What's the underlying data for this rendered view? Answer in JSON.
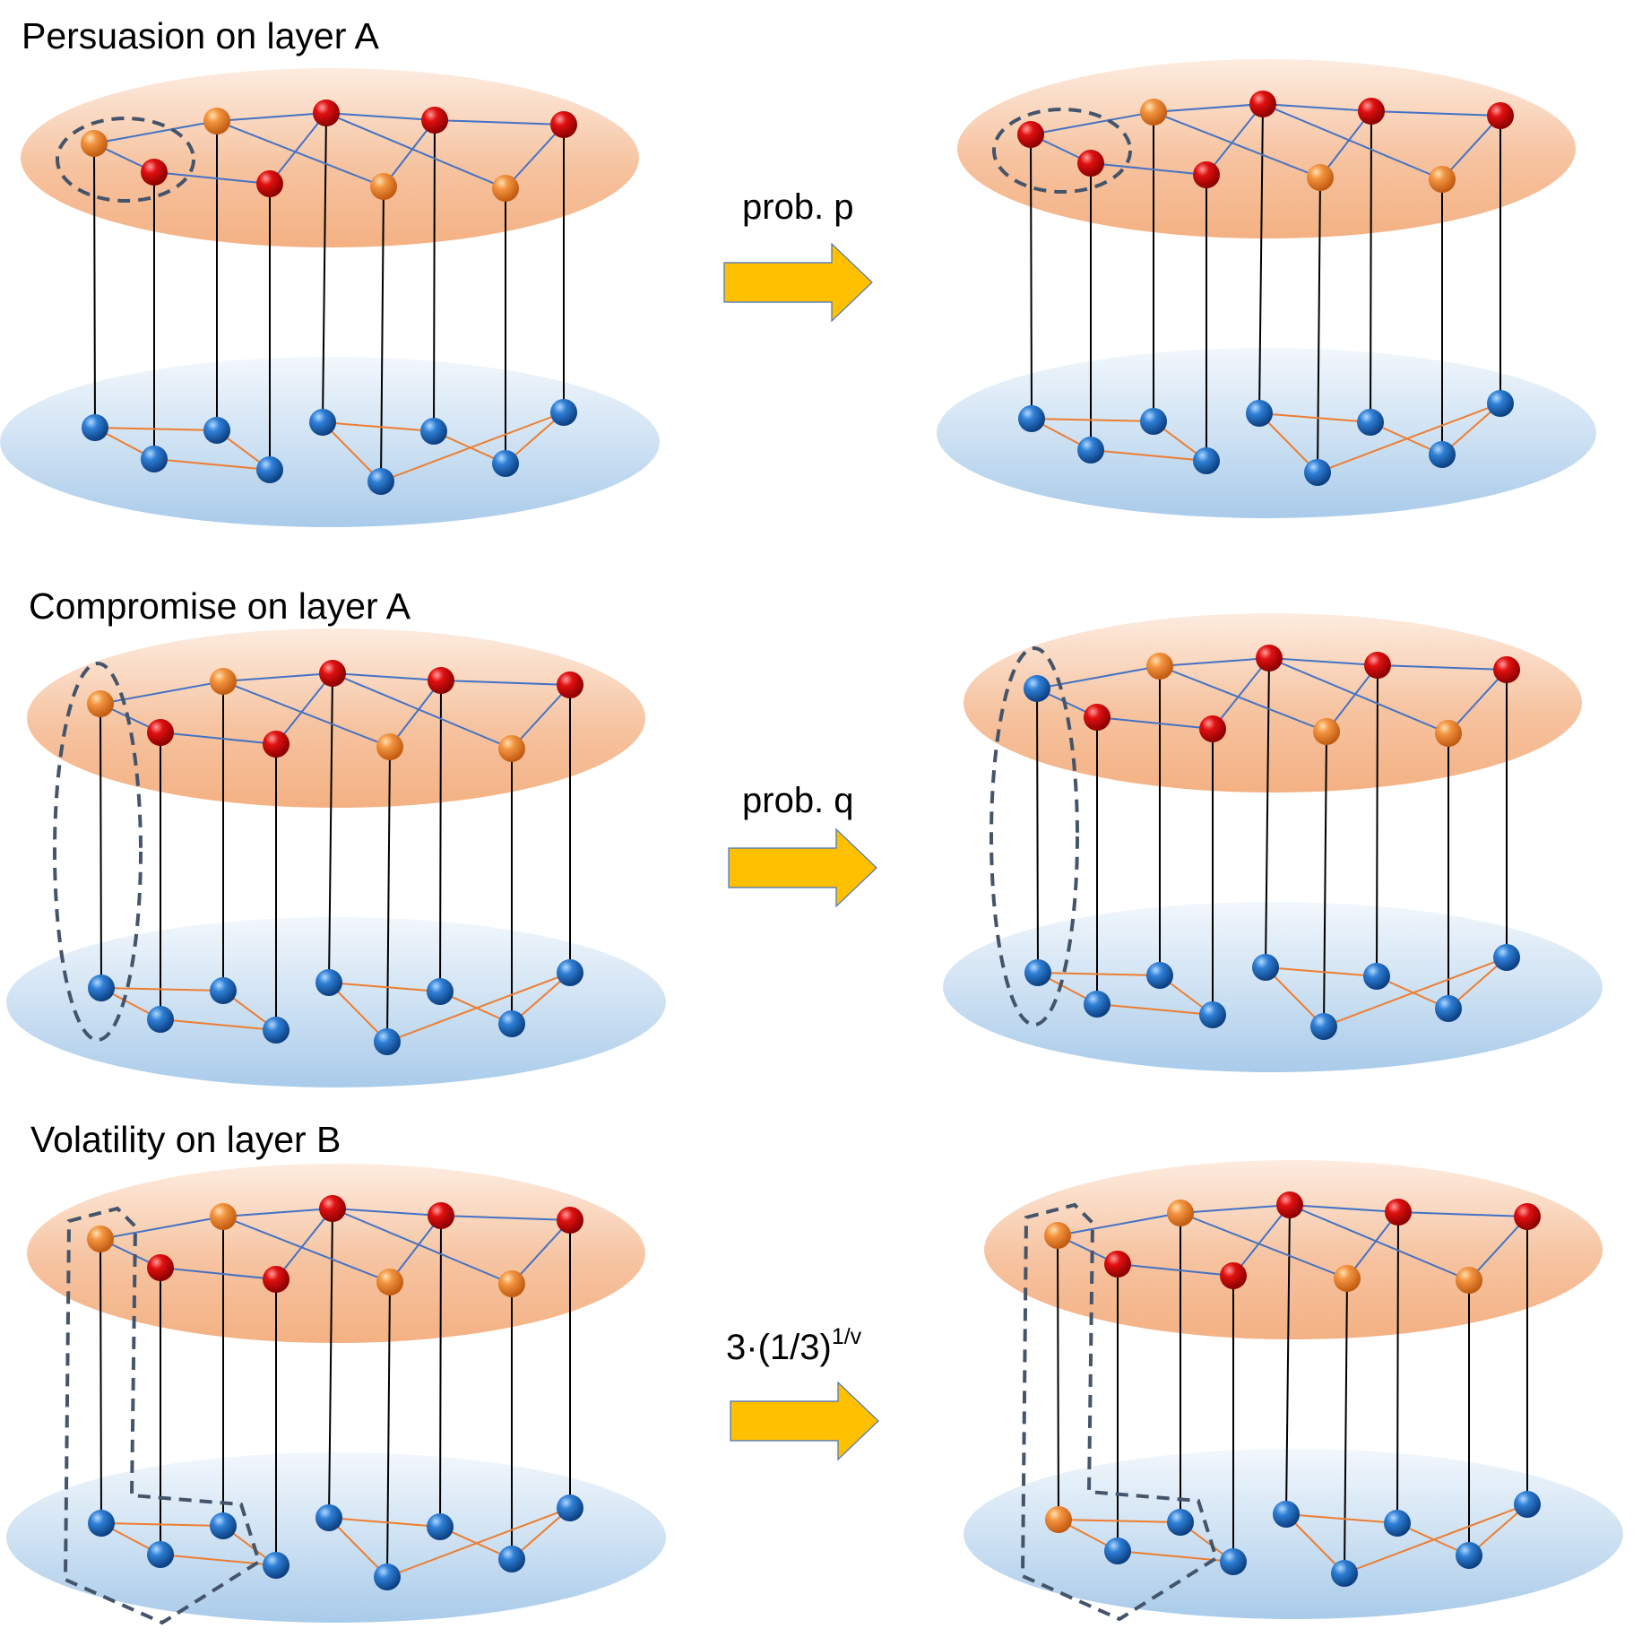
{
  "rows": [
    {
      "title": "Persuasion on layer A",
      "transition_label": "prob. p",
      "before": {
        "top_colors": [
          "orange",
          "red",
          "orange",
          "red",
          "red",
          "orange",
          "red",
          "orange",
          "red"
        ],
        "bottom_colors": [
          "blue",
          "blue",
          "blue",
          "blue",
          "blue",
          "blue",
          "blue",
          "blue",
          "blue"
        ],
        "highlight": "pair"
      },
      "after": {
        "top_colors": [
          "red",
          "red",
          "orange",
          "red",
          "red",
          "orange",
          "red",
          "orange",
          "red"
        ],
        "bottom_colors": [
          "blue",
          "blue",
          "blue",
          "blue",
          "blue",
          "blue",
          "blue",
          "blue",
          "blue"
        ],
        "highlight": "pair"
      }
    },
    {
      "title": "Compromise on layer A",
      "transition_label": "prob. q",
      "before": {
        "top_colors": [
          "orange",
          "red",
          "orange",
          "red",
          "red",
          "orange",
          "red",
          "orange",
          "red"
        ],
        "bottom_colors": [
          "blue",
          "blue",
          "blue",
          "blue",
          "blue",
          "blue",
          "blue",
          "blue",
          "blue"
        ],
        "highlight": "column"
      },
      "after": {
        "top_colors": [
          "blue",
          "red",
          "orange",
          "red",
          "red",
          "orange",
          "red",
          "orange",
          "red"
        ],
        "bottom_colors": [
          "blue",
          "blue",
          "blue",
          "blue",
          "blue",
          "blue",
          "blue",
          "blue",
          "blue"
        ],
        "highlight": "column"
      }
    },
    {
      "title": "Volatility on layer B",
      "transition_label": "3·(1/3)",
      "transition_superscript": "1/v",
      "before": {
        "top_colors": [
          "orange",
          "red",
          "orange",
          "red",
          "red",
          "orange",
          "red",
          "orange",
          "red"
        ],
        "bottom_colors": [
          "blue",
          "blue",
          "blue",
          "blue",
          "blue",
          "blue",
          "blue",
          "blue",
          "blue"
        ],
        "highlight": "pentagon"
      },
      "after": {
        "top_colors": [
          "orange",
          "red",
          "orange",
          "red",
          "red",
          "orange",
          "red",
          "orange",
          "red"
        ],
        "bottom_colors": [
          "orange",
          "blue",
          "blue",
          "blue",
          "blue",
          "blue",
          "blue",
          "blue",
          "blue"
        ],
        "highlight": "pentagon"
      }
    }
  ],
  "colors": {
    "red": "#cc0000",
    "orange": "#f08030",
    "blue": "#2a6fc0",
    "arrow": "#ffc000",
    "top_edge": "#4472c4",
    "bottom_edge": "#ed7d31",
    "top_layer": "#f4b183",
    "bottom_layer": "#9dc3e6",
    "dashed": "#44546a"
  }
}
